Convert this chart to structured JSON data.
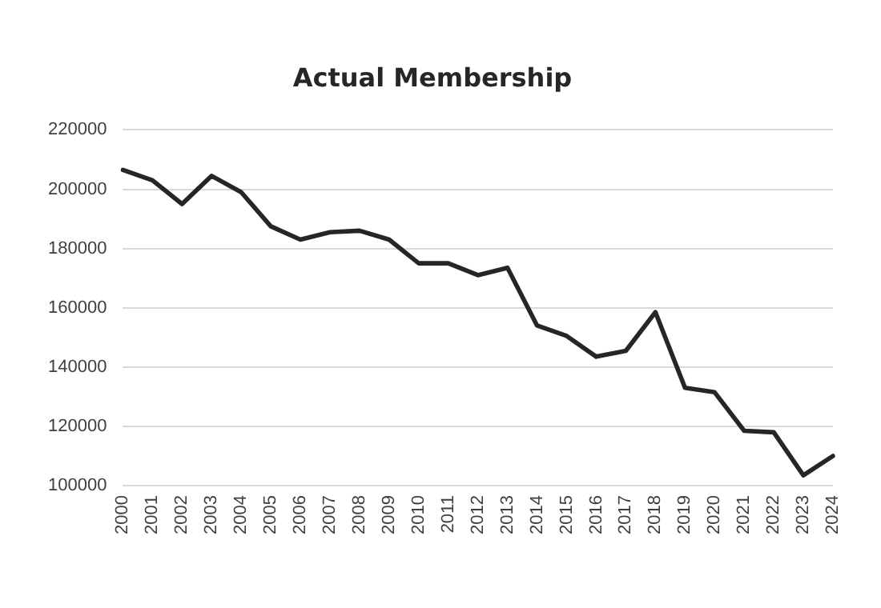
{
  "chart_data": {
    "type": "line",
    "title": "Actual Membership",
    "categories": [
      "2000",
      "2001",
      "2002",
      "2003",
      "2004",
      "2005",
      "2006",
      "2007",
      "2008",
      "2009",
      "2010",
      "2011",
      "2012",
      "2013",
      "2014",
      "2015",
      "2016",
      "2017",
      "2018",
      "2019",
      "2020",
      "2021",
      "2022",
      "2023",
      "2024"
    ],
    "series": [
      {
        "color": "#262626",
        "values": [
          206500,
          203000,
          195000,
          204500,
          199000,
          187500,
          183000,
          185500,
          186000,
          183000,
          175000,
          175000,
          171000,
          173500,
          154000,
          150500,
          143500,
          145500,
          158500,
          133000,
          131500,
          118500,
          118000,
          103500,
          110000
        ]
      }
    ],
    "ylim": [
      100000,
      220000
    ],
    "yticks": [
      100000,
      120000,
      140000,
      160000,
      180000,
      200000,
      220000
    ],
    "grid": "y",
    "legend": false,
    "marker": "none",
    "line_style": "solid"
  }
}
